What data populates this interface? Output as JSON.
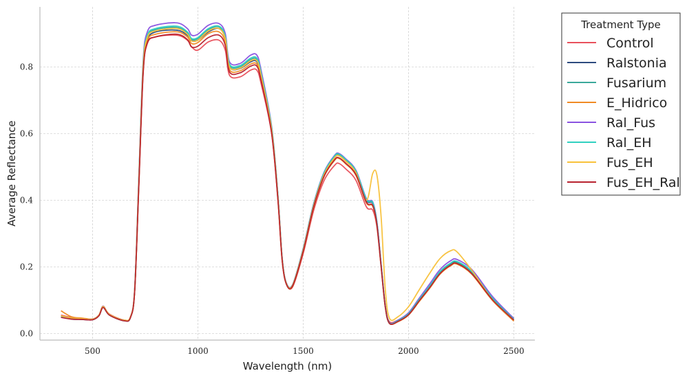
{
  "chart_data": {
    "type": "line",
    "title": "",
    "xlabel": "Wavelength (nm)",
    "ylabel": "Average Reflectance",
    "xlim": [
      250,
      2600
    ],
    "ylim": [
      -0.02,
      0.98
    ],
    "xticks": [
      500,
      1000,
      1500,
      2000,
      2500
    ],
    "yticks": [
      0.0,
      0.2,
      0.4,
      0.6,
      0.8
    ],
    "xtick_labels": [
      "500",
      "1000",
      "1500",
      "2000",
      "2500"
    ],
    "ytick_labels": [
      "0.0",
      "0.2",
      "0.4",
      "0.6",
      "0.8"
    ],
    "grid": true,
    "legend": {
      "title": "Treatment Type",
      "placement": "outside-top-right"
    },
    "x": [
      350,
      400,
      450,
      500,
      530,
      550,
      580,
      650,
      680,
      700,
      720,
      740,
      760,
      800,
      900,
      950,
      970,
      1000,
      1050,
      1100,
      1130,
      1150,
      1200,
      1250,
      1280,
      1300,
      1350,
      1380,
      1400,
      1420,
      1450,
      1500,
      1550,
      1600,
      1650,
      1670,
      1700,
      1750,
      1800,
      1830,
      1850,
      1870,
      1890,
      1910,
      1950,
      2000,
      2050,
      2100,
      2150,
      2200,
      2230,
      2300,
      2400,
      2500
    ],
    "series": [
      {
        "name": "Control",
        "color": "#e8505b",
        "values": [
          0.055,
          0.048,
          0.045,
          0.043,
          0.055,
          0.08,
          0.058,
          0.04,
          0.05,
          0.13,
          0.45,
          0.78,
          0.87,
          0.89,
          0.895,
          0.88,
          0.86,
          0.85,
          0.875,
          0.88,
          0.85,
          0.775,
          0.77,
          0.79,
          0.79,
          0.75,
          0.6,
          0.4,
          0.22,
          0.15,
          0.14,
          0.24,
          0.37,
          0.46,
          0.505,
          0.51,
          0.495,
          0.46,
          0.38,
          0.37,
          0.32,
          0.2,
          0.08,
          0.035,
          0.04,
          0.06,
          0.1,
          0.14,
          0.18,
          0.205,
          0.21,
          0.18,
          0.1,
          0.04
        ]
      },
      {
        "name": "Ralstonia",
        "color": "#2c4a7e",
        "values": [
          0.05,
          0.043,
          0.042,
          0.041,
          0.053,
          0.078,
          0.055,
          0.038,
          0.048,
          0.13,
          0.46,
          0.79,
          0.88,
          0.905,
          0.91,
          0.895,
          0.878,
          0.88,
          0.905,
          0.915,
          0.885,
          0.8,
          0.795,
          0.815,
          0.815,
          0.77,
          0.61,
          0.41,
          0.225,
          0.15,
          0.145,
          0.25,
          0.385,
          0.48,
          0.53,
          0.535,
          0.52,
          0.485,
          0.4,
          0.39,
          0.33,
          0.205,
          0.08,
          0.03,
          0.038,
          0.058,
          0.1,
          0.14,
          0.185,
          0.21,
          0.215,
          0.185,
          0.105,
          0.045
        ]
      },
      {
        "name": "Fusarium",
        "color": "#3aa89a",
        "values": [
          0.052,
          0.046,
          0.044,
          0.042,
          0.054,
          0.079,
          0.056,
          0.039,
          0.049,
          0.13,
          0.465,
          0.795,
          0.89,
          0.912,
          0.918,
          0.902,
          0.882,
          0.885,
          0.912,
          0.92,
          0.89,
          0.805,
          0.8,
          0.822,
          0.822,
          0.778,
          0.615,
          0.412,
          0.226,
          0.15,
          0.145,
          0.252,
          0.388,
          0.482,
          0.532,
          0.537,
          0.522,
          0.487,
          0.402,
          0.392,
          0.332,
          0.205,
          0.08,
          0.03,
          0.037,
          0.057,
          0.098,
          0.138,
          0.182,
          0.207,
          0.212,
          0.182,
          0.102,
          0.04
        ]
      },
      {
        "name": "E_Hidrico",
        "color": "#f08a24",
        "values": [
          0.068,
          0.05,
          0.046,
          0.043,
          0.054,
          0.079,
          0.056,
          0.039,
          0.049,
          0.128,
          0.455,
          0.785,
          0.878,
          0.898,
          0.905,
          0.89,
          0.87,
          0.873,
          0.9,
          0.905,
          0.875,
          0.792,
          0.788,
          0.808,
          0.808,
          0.765,
          0.605,
          0.405,
          0.222,
          0.148,
          0.142,
          0.245,
          0.378,
          0.472,
          0.52,
          0.525,
          0.51,
          0.475,
          0.392,
          0.382,
          0.325,
          0.2,
          0.078,
          0.03,
          0.035,
          0.055,
          0.095,
          0.135,
          0.178,
          0.203,
          0.208,
          0.178,
          0.098,
          0.037
        ]
      },
      {
        "name": "Ral_Fus",
        "color": "#8a52e0",
        "values": [
          0.05,
          0.044,
          0.043,
          0.042,
          0.055,
          0.082,
          0.057,
          0.04,
          0.05,
          0.135,
          0.475,
          0.815,
          0.905,
          0.925,
          0.932,
          0.915,
          0.895,
          0.898,
          0.925,
          0.93,
          0.9,
          0.815,
          0.81,
          0.835,
          0.835,
          0.79,
          0.622,
          0.415,
          0.228,
          0.152,
          0.147,
          0.255,
          0.39,
          0.485,
          0.535,
          0.54,
          0.525,
          0.49,
          0.405,
          0.395,
          0.335,
          0.208,
          0.082,
          0.032,
          0.04,
          0.062,
          0.105,
          0.148,
          0.192,
          0.218,
          0.222,
          0.192,
          0.11,
          0.045
        ]
      },
      {
        "name": "Ral_EH",
        "color": "#2fd0c0",
        "values": [
          0.051,
          0.045,
          0.043,
          0.042,
          0.054,
          0.08,
          0.056,
          0.039,
          0.049,
          0.132,
          0.468,
          0.805,
          0.895,
          0.915,
          0.922,
          0.905,
          0.885,
          0.888,
          0.915,
          0.922,
          0.892,
          0.808,
          0.804,
          0.826,
          0.826,
          0.782,
          0.618,
          0.413,
          0.227,
          0.151,
          0.146,
          0.253,
          0.388,
          0.483,
          0.533,
          0.538,
          0.523,
          0.488,
          0.403,
          0.393,
          0.333,
          0.206,
          0.081,
          0.031,
          0.038,
          0.059,
          0.101,
          0.142,
          0.186,
          0.211,
          0.216,
          0.186,
          0.105,
          0.042
        ]
      },
      {
        "name": "Fus_EH",
        "color": "#f8c13a",
        "values": [
          0.053,
          0.046,
          0.044,
          0.042,
          0.055,
          0.081,
          0.057,
          0.04,
          0.05,
          0.132,
          0.462,
          0.798,
          0.888,
          0.908,
          0.915,
          0.898,
          0.878,
          0.88,
          0.908,
          0.915,
          0.885,
          0.8,
          0.796,
          0.818,
          0.818,
          0.774,
          0.612,
          0.408,
          0.224,
          0.15,
          0.145,
          0.25,
          0.384,
          0.478,
          0.528,
          0.533,
          0.518,
          0.483,
          0.4,
          0.48,
          0.475,
          0.35,
          0.13,
          0.045,
          0.05,
          0.08,
          0.13,
          0.18,
          0.225,
          0.248,
          0.245,
          0.19,
          0.1,
          0.04
        ]
      },
      {
        "name": "Fus_EH_Ral",
        "color": "#b8222e",
        "values": [
          0.048,
          0.043,
          0.042,
          0.041,
          0.053,
          0.078,
          0.055,
          0.038,
          0.048,
          0.128,
          0.45,
          0.78,
          0.872,
          0.89,
          0.898,
          0.882,
          0.86,
          0.862,
          0.888,
          0.895,
          0.865,
          0.785,
          0.782,
          0.802,
          0.802,
          0.76,
          0.602,
          0.402,
          0.221,
          0.148,
          0.143,
          0.246,
          0.38,
          0.473,
          0.522,
          0.527,
          0.512,
          0.477,
          0.394,
          0.384,
          0.327,
          0.202,
          0.079,
          0.03,
          0.036,
          0.056,
          0.097,
          0.137,
          0.18,
          0.205,
          0.21,
          0.18,
          0.1,
          0.04
        ]
      }
    ]
  }
}
